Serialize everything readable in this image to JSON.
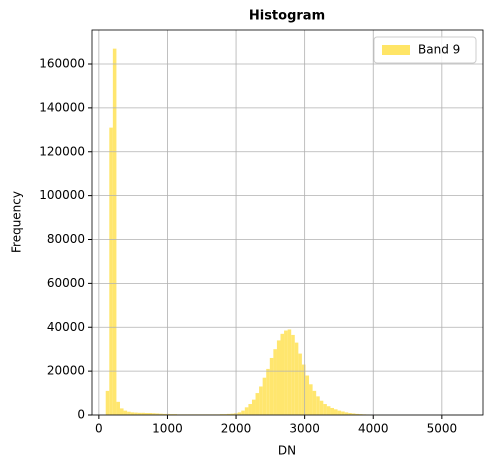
{
  "chart_data": {
    "type": "histogram",
    "title": "Histogram",
    "x_label": "DN",
    "y_label": "Frequency",
    "bins": [
      100,
      152,
      204,
      256,
      308,
      360,
      412,
      464,
      516,
      568,
      620,
      672,
      724,
      776,
      828,
      880,
      932,
      984,
      1036,
      1088,
      1140,
      1192,
      1244,
      1296,
      1348,
      1400,
      1452,
      1504,
      1556,
      1608,
      1660,
      1712,
      1764,
      1816,
      1868,
      1920,
      1972,
      2024,
      2076,
      2128,
      2180,
      2232,
      2284,
      2336,
      2388,
      2440,
      2492,
      2544,
      2596,
      2648,
      2700,
      2752,
      2804,
      2856,
      2908,
      2960,
      3012,
      3064,
      3116,
      3168,
      3220,
      3272,
      3324,
      3376,
      3428,
      3480,
      3532,
      3584,
      3636,
      3688,
      3740,
      3792,
      3844,
      3896,
      3948,
      4000,
      4052,
      4104,
      4156,
      4208,
      4260,
      4312,
      4364,
      4416,
      4468,
      4520,
      4572,
      4624,
      4676,
      4728,
      4780,
      4832,
      4884,
      4936,
      4988,
      5040,
      5092,
      5144,
      5196,
      5248,
      5300
    ],
    "series": [
      {
        "name": "Band 9",
        "color": "#ffe566",
        "values": [
          11000,
          131000,
          167000,
          6000,
          3000,
          2000,
          1500,
          1200,
          1100,
          1000,
          1000,
          900,
          900,
          800,
          700,
          600,
          500,
          500,
          400,
          400,
          300,
          300,
          300,
          300,
          300,
          300,
          300,
          300,
          300,
          300,
          300,
          300,
          400,
          400,
          500,
          600,
          800,
          1200,
          2000,
          3500,
          5000,
          7000,
          10000,
          13000,
          17000,
          21000,
          26000,
          30000,
          34000,
          37000,
          38500,
          39000,
          36500,
          33000,
          28000,
          23000,
          18000,
          14000,
          11000,
          8500,
          6500,
          5000,
          4000,
          3200,
          2600,
          2000,
          1600,
          1200,
          900,
          700,
          500,
          400,
          300,
          250,
          200,
          200,
          150,
          150,
          100,
          100,
          100,
          50,
          50,
          50,
          50,
          50,
          50,
          50,
          50,
          50,
          50,
          50,
          50,
          50,
          50,
          50,
          50,
          50,
          50,
          50
        ]
      }
    ],
    "xlim": [
      -100,
      5600
    ],
    "ylim": [
      0,
      175500
    ],
    "xticks": [
      0,
      1000,
      2000,
      3000,
      4000,
      5000
    ],
    "yticks": [
      0,
      20000,
      40000,
      60000,
      80000,
      100000,
      120000,
      140000,
      160000
    ],
    "grid": true,
    "legend": "upper right"
  }
}
